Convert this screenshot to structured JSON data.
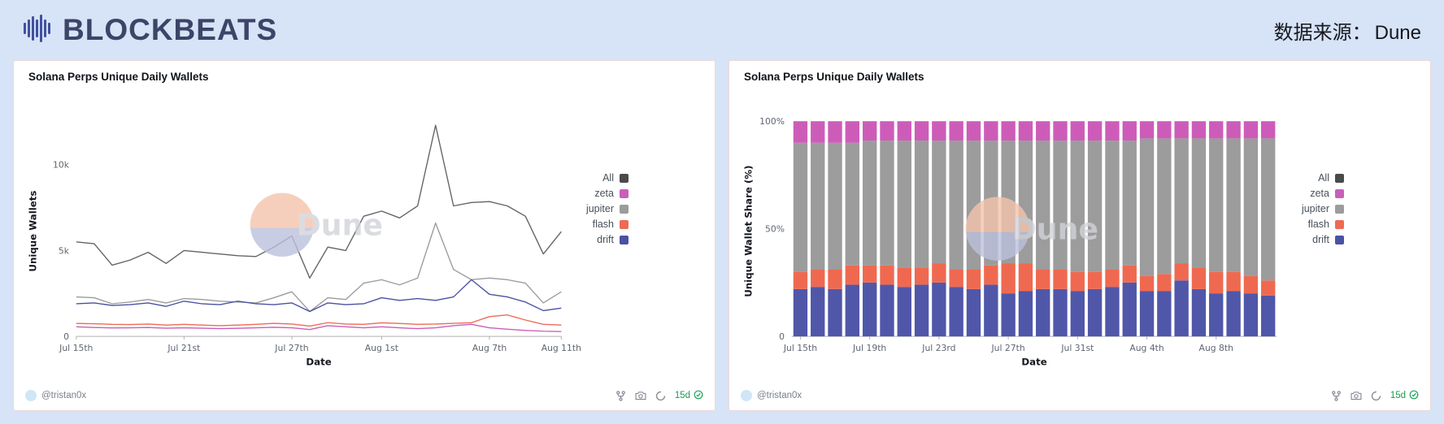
{
  "header": {
    "brand": "BLOCKBEATS",
    "source_label": "数据来源：",
    "source_name": "Dune"
  },
  "watermark_text": "Dune",
  "colors": {
    "page_background": "#d7e3f6",
    "card_border": "#eed8d8",
    "brand_navy": "#3c4468",
    "badge_green": "#179a52",
    "drift_navy": "#4b51a3",
    "flash_orange": "#ee6a55",
    "jupiter_gray": "#9c9c9c",
    "zeta_magenta": "#c95fb8",
    "all_dark_gray": "#4a4a4a"
  },
  "panels": [
    {
      "author": "@tristan0x",
      "range": "15d",
      "footer_icons": [
        "fork-icon",
        "camera-icon",
        "refresh-icon",
        "check-icon"
      ]
    },
    {
      "author": "@tristan0x",
      "range": "15d",
      "footer_icons": [
        "fork-icon",
        "camera-icon",
        "refresh-icon",
        "check-icon"
      ]
    }
  ],
  "chart_data": [
    {
      "type": "line",
      "title": "Solana Perps Unique Daily Wallets",
      "xlabel": "Date",
      "ylabel": "Unique Wallets",
      "x": [
        "Jul 15",
        "Jul 16",
        "Jul 17",
        "Jul 18",
        "Jul 19",
        "Jul 20",
        "Jul 21",
        "Jul 22",
        "Jul 23",
        "Jul 24",
        "Jul 25",
        "Jul 26",
        "Jul 27",
        "Jul 28",
        "Jul 29",
        "Jul 30",
        "Jul 31",
        "Aug 1",
        "Aug 2",
        "Aug 3",
        "Aug 4",
        "Aug 5",
        "Aug 6",
        "Aug 7",
        "Aug 8",
        "Aug 9",
        "Aug 10",
        "Aug 11"
      ],
      "x_ticks": [
        {
          "i": 0,
          "label": "Jul 15th"
        },
        {
          "i": 6,
          "label": "Jul 21st"
        },
        {
          "i": 12,
          "label": "Jul 27th"
        },
        {
          "i": 17,
          "label": "Aug 1st"
        },
        {
          "i": 23,
          "label": "Aug 7th"
        },
        {
          "i": 27,
          "label": "Aug 11th"
        }
      ],
      "y_max": 13000,
      "y_ticks": [
        {
          "value": 0,
          "label": "0"
        },
        {
          "value": 5000,
          "label": "5k"
        },
        {
          "value": 10000,
          "label": "10k"
        }
      ],
      "legend": [
        {
          "label": "All",
          "color": "#4a4a4a"
        },
        {
          "label": "zeta",
          "color": "#c95fb8"
        },
        {
          "label": "jupiter",
          "color": "#9c9c9c"
        },
        {
          "label": "flash",
          "color": "#ee6a55"
        },
        {
          "label": "drift",
          "color": "#4b51a3"
        }
      ],
      "series": [
        {
          "name": "All",
          "color": "#646464",
          "values": [
            5500,
            5400,
            4150,
            4450,
            4900,
            4250,
            5000,
            4900,
            4800,
            4700,
            4650,
            5200,
            5850,
            3400,
            5200,
            5000,
            7000,
            7300,
            6900,
            7600,
            12300,
            7600,
            7800,
            7850,
            7600,
            7000,
            4800,
            6100
          ]
        },
        {
          "name": "jupiter",
          "color": "#9c9c9c",
          "values": [
            2300,
            2250,
            1900,
            2000,
            2150,
            1950,
            2200,
            2150,
            2050,
            2000,
            1950,
            2250,
            2600,
            1450,
            2250,
            2150,
            3100,
            3300,
            3000,
            3400,
            6600,
            3900,
            3300,
            3400,
            3300,
            3100,
            1950,
            2600
          ]
        },
        {
          "name": "zeta",
          "color": "#c95fb8",
          "values": [
            560,
            520,
            490,
            500,
            520,
            480,
            500,
            480,
            450,
            470,
            500,
            530,
            500,
            400,
            620,
            560,
            500,
            560,
            500,
            450,
            500,
            620,
            700,
            500,
            420,
            350,
            300,
            280
          ]
        },
        {
          "name": "flash",
          "color": "#ee6a55",
          "values": [
            750,
            740,
            700,
            690,
            720,
            660,
            700,
            660,
            620,
            660,
            700,
            760,
            720,
            600,
            800,
            720,
            700,
            790,
            750,
            700,
            720,
            760,
            800,
            1150,
            1250,
            950,
            700,
            660
          ]
        },
        {
          "name": "drift",
          "color": "#4b51a3",
          "values": [
            1900,
            1950,
            1800,
            1850,
            1950,
            1750,
            2050,
            1900,
            1850,
            2050,
            1900,
            1850,
            1950,
            1450,
            1950,
            1850,
            1900,
            2250,
            2100,
            2200,
            2100,
            2300,
            3300,
            2450,
            2300,
            2000,
            1500,
            1650
          ]
        }
      ]
    },
    {
      "type": "bar",
      "stacked_percent": true,
      "title": "Solana Perps Unique Daily Wallets",
      "xlabel": "Date",
      "ylabel": "Unique Wallet Share (%)",
      "x": [
        "Jul 15",
        "Jul 16",
        "Jul 17",
        "Jul 18",
        "Jul 19",
        "Jul 20",
        "Jul 21",
        "Jul 22",
        "Jul 23",
        "Jul 24",
        "Jul 25",
        "Jul 26",
        "Jul 27",
        "Jul 28",
        "Jul 29",
        "Jul 30",
        "Jul 31",
        "Aug 1",
        "Aug 2",
        "Aug 3",
        "Aug 4",
        "Aug 5",
        "Aug 6",
        "Aug 7",
        "Aug 8",
        "Aug 9",
        "Aug 10",
        "Aug 11"
      ],
      "x_ticks": [
        {
          "i": 0,
          "label": "Jul 15th"
        },
        {
          "i": 4,
          "label": "Jul 19th"
        },
        {
          "i": 8,
          "label": "Jul 23rd"
        },
        {
          "i": 12,
          "label": "Jul 27th"
        },
        {
          "i": 16,
          "label": "Jul 31st"
        },
        {
          "i": 20,
          "label": "Aug 4th"
        },
        {
          "i": 24,
          "label": "Aug 8th"
        }
      ],
      "y_max": 100,
      "y_ticks": [
        {
          "value": 0,
          "label": "0"
        },
        {
          "value": 50,
          "label": "50%"
        },
        {
          "value": 100,
          "label": "100%"
        }
      ],
      "legend": [
        {
          "label": "All",
          "color": "#4a4a4a"
        },
        {
          "label": "zeta",
          "color": "#c95fb8"
        },
        {
          "label": "jupiter",
          "color": "#9c9c9c"
        },
        {
          "label": "flash",
          "color": "#ee6a55"
        },
        {
          "label": "drift",
          "color": "#4b51a3"
        }
      ],
      "series": [
        {
          "name": "drift",
          "color": "#5057a9",
          "values": [
            22,
            23,
            22,
            24,
            25,
            24,
            23,
            24,
            25,
            23,
            22,
            24,
            20,
            21,
            22,
            22,
            21,
            22,
            23,
            25,
            21,
            21,
            26,
            22,
            20,
            21,
            20,
            19
          ]
        },
        {
          "name": "flash",
          "color": "#ef6950",
          "values": [
            8,
            8,
            9,
            9,
            8,
            9,
            9,
            8,
            9,
            8,
            9,
            9,
            14,
            13,
            9,
            9,
            9,
            8,
            8,
            8,
            7,
            8,
            8,
            10,
            10,
            9,
            8,
            7
          ]
        },
        {
          "name": "jupiter",
          "color": "#9c9c9c",
          "values": [
            60,
            59,
            59,
            57,
            58,
            58,
            59,
            59,
            57,
            60,
            60,
            58,
            57,
            57,
            60,
            60,
            61,
            61,
            60,
            58,
            64,
            63,
            58,
            60,
            62,
            62,
            64,
            66
          ]
        },
        {
          "name": "zeta",
          "color": "#cd5cb9",
          "values": [
            10,
            10,
            10,
            10,
            9,
            9,
            9,
            9,
            9,
            9,
            9,
            9,
            9,
            9,
            9,
            9,
            9,
            9,
            9,
            9,
            8,
            8,
            8,
            8,
            8,
            8,
            8,
            8
          ]
        }
      ]
    }
  ]
}
